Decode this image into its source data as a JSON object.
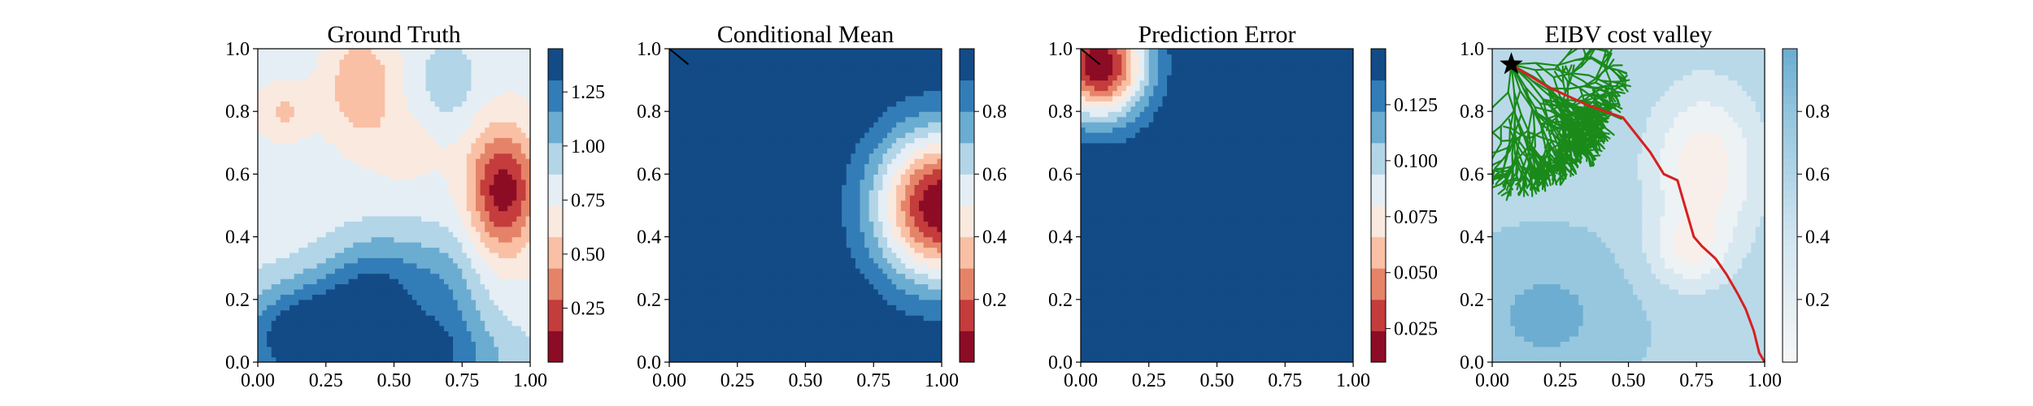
{
  "chart_data": [
    {
      "type": "heatmap",
      "title": "Ground Truth",
      "xlim": [
        0,
        1
      ],
      "ylim": [
        0,
        1
      ],
      "x_ticks": [
        "0.00",
        "0.25",
        "0.50",
        "0.75",
        "1.00"
      ],
      "y_ticks": [
        "0.0",
        "0.2",
        "0.4",
        "0.6",
        "0.8",
        "1.0"
      ],
      "colormap": "RdBu",
      "colorbar": {
        "range": [
          0.0,
          1.45
        ],
        "ticks": [
          "0.25",
          "0.50",
          "0.75",
          "1.00",
          "1.25"
        ]
      },
      "field": {
        "base": 0.78,
        "bumps": [
          {
            "x": 0.9,
            "y": 0.55,
            "amp": -0.72,
            "sx": 0.09,
            "sy": 0.14
          },
          {
            "x": 0.38,
            "y": 0.88,
            "amp": -0.34,
            "sx": 0.09,
            "sy": 0.12
          },
          {
            "x": 0.1,
            "y": 0.8,
            "amp": -0.22,
            "sx": 0.07,
            "sy": 0.06
          },
          {
            "x": 0.55,
            "y": 0.68,
            "amp": -0.12,
            "sx": 0.1,
            "sy": 0.08
          },
          {
            "x": 0.2,
            "y": 0.1,
            "amp": 0.62,
            "sx": 0.18,
            "sy": 0.12
          },
          {
            "x": 0.45,
            "y": 0.25,
            "amp": 0.45,
            "sx": 0.14,
            "sy": 0.12
          },
          {
            "x": 0.5,
            "y": 0.0,
            "amp": 0.5,
            "sx": 0.3,
            "sy": 0.1
          },
          {
            "x": 0.7,
            "y": 0.2,
            "amp": 0.28,
            "sx": 0.1,
            "sy": 0.15
          },
          {
            "x": 0.7,
            "y": 0.9,
            "amp": 0.18,
            "sx": 0.08,
            "sy": 0.1
          }
        ]
      }
    },
    {
      "type": "heatmap",
      "title": "Conditional Mean",
      "xlim": [
        0,
        1
      ],
      "ylim": [
        0,
        1
      ],
      "x_ticks": [
        "0.00",
        "0.25",
        "0.50",
        "0.75",
        "1.00"
      ],
      "y_ticks": [
        "0.0",
        "0.2",
        "0.4",
        "0.6",
        "0.8",
        "1.0"
      ],
      "colormap": "RdBu",
      "colorbar": {
        "range": [
          0.0,
          1.0
        ],
        "ticks": [
          "0.2",
          "0.4",
          "0.6",
          "0.8"
        ]
      },
      "field": {
        "base": 1.0,
        "bumps": [
          {
            "x": 1.0,
            "y": 0.5,
            "amp": -1.0,
            "sx": 0.17,
            "sy": 0.17
          }
        ]
      },
      "path": [
        [
          0.0,
          1.0
        ],
        [
          0.07,
          0.95
        ]
      ]
    },
    {
      "type": "heatmap",
      "title": "Prediction Error",
      "xlim": [
        0,
        1
      ],
      "ylim": [
        0,
        1
      ],
      "x_ticks": [
        "0.00",
        "0.25",
        "0.50",
        "0.75",
        "1.00"
      ],
      "y_ticks": [
        "0.0",
        "0.2",
        "0.4",
        "0.6",
        "0.8",
        "1.0"
      ],
      "colormap": "RdBu",
      "colorbar": {
        "range": [
          0.01,
          0.15
        ],
        "ticks": [
          "0.025",
          "0.050",
          "0.075",
          "0.100",
          "0.125"
        ]
      },
      "field": {
        "base": 0.15,
        "bumps": [
          {
            "x": 0.07,
            "y": 0.95,
            "amp": -0.14,
            "sx": 0.12,
            "sy": 0.12
          }
        ]
      },
      "path": [
        [
          0.0,
          1.0
        ],
        [
          0.07,
          0.95
        ]
      ]
    },
    {
      "type": "heatmap",
      "title": "EIBV cost valley",
      "xlim": [
        0,
        1
      ],
      "ylim": [
        0,
        1
      ],
      "x_ticks": [
        "0.00",
        "0.25",
        "0.50",
        "0.75",
        "1.00"
      ],
      "y_ticks": [
        "0.0",
        "0.2",
        "0.4",
        "0.6",
        "0.8",
        "1.0"
      ],
      "colormap": "RdBu",
      "colorbar": {
        "range": [
          0.0,
          1.0
        ],
        "ticks": [
          "0.2",
          "0.4",
          "0.6",
          "0.8"
        ]
      },
      "field": {
        "base": 0.78,
        "bumps": [
          {
            "x": 0.78,
            "y": 0.62,
            "amp": -0.35,
            "sx": 0.14,
            "sy": 0.18
          },
          {
            "x": 0.72,
            "y": 0.35,
            "amp": -0.22,
            "sx": 0.1,
            "sy": 0.08
          },
          {
            "x": 0.2,
            "y": 0.15,
            "amp": 0.15,
            "sx": 0.2,
            "sy": 0.15
          }
        ]
      },
      "start_marker": [
        0.07,
        0.95
      ],
      "best_path": [
        [
          0.07,
          0.95
        ],
        [
          0.2,
          0.88
        ],
        [
          0.35,
          0.82
        ],
        [
          0.48,
          0.78
        ],
        [
          0.58,
          0.67
        ],
        [
          0.63,
          0.6
        ],
        [
          0.68,
          0.58
        ],
        [
          0.7,
          0.52
        ],
        [
          0.72,
          0.46
        ],
        [
          0.74,
          0.4
        ],
        [
          0.77,
          0.37
        ],
        [
          0.82,
          0.33
        ],
        [
          0.86,
          0.28
        ],
        [
          0.9,
          0.22
        ],
        [
          0.93,
          0.17
        ],
        [
          0.96,
          0.1
        ],
        [
          0.98,
          0.03
        ],
        [
          1.0,
          0.0
        ]
      ]
    }
  ]
}
